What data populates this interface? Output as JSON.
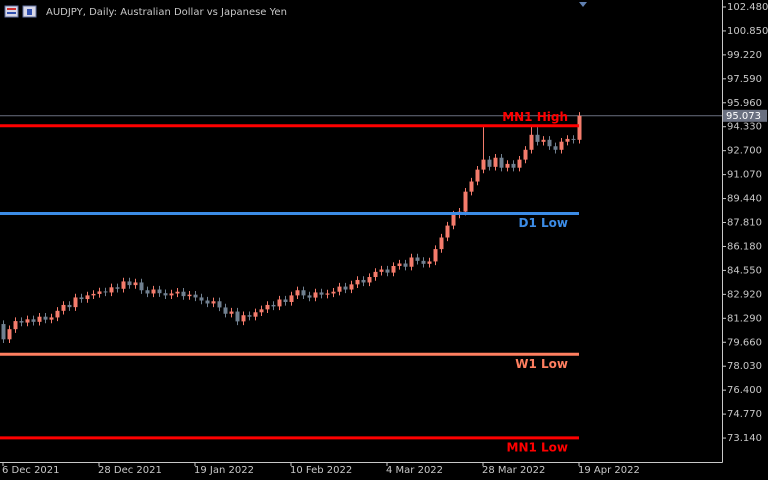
{
  "chart_data": {
    "type": "candlestick",
    "title": "AUDJPY, Daily:  Australian Dollar vs Japanese Yen",
    "up_color": "#f47c6c",
    "down_color": "#708090",
    "categories": [
      "6 Dec 2021",
      null,
      null,
      null,
      null,
      null,
      null,
      null,
      null,
      null,
      null,
      null,
      null,
      null,
      null,
      null,
      "28 Dec 2021",
      null,
      null,
      null,
      null,
      null,
      null,
      null,
      null,
      null,
      null,
      null,
      null,
      null,
      null,
      null,
      "19 Jan 2022",
      null,
      null,
      null,
      null,
      null,
      null,
      null,
      null,
      null,
      null,
      null,
      null,
      null,
      null,
      null,
      "10 Feb 2022",
      null,
      null,
      null,
      null,
      null,
      null,
      null,
      null,
      null,
      null,
      null,
      null,
      null,
      null,
      null,
      "4 Mar 2022",
      null,
      null,
      null,
      null,
      null,
      null,
      null,
      null,
      null,
      null,
      null,
      null,
      null,
      null,
      null,
      "28 Mar 2022",
      null,
      null,
      null,
      null,
      null,
      null,
      null,
      null,
      null,
      null,
      null,
      null,
      null,
      null,
      null,
      "19 Apr 2022"
    ],
    "open": [
      80.9,
      79.86,
      80.55,
      81.1,
      81.0,
      81.22,
      81.05,
      81.4,
      81.2,
      81.35,
      81.8,
      82.2,
      82.05,
      82.71,
      82.6,
      82.85,
      82.95,
      83.12,
      83.05,
      83.4,
      83.3,
      83.8,
      83.55,
      83.73,
      83.2,
      82.98,
      83.25,
      83.0,
      82.85,
      82.98,
      83.1,
      82.8,
      82.9,
      82.71,
      82.5,
      82.3,
      82.45,
      82.03,
      81.6,
      81.75,
      81.08,
      81.5,
      81.4,
      81.7,
      81.9,
      82.2,
      82.1,
      82.57,
      82.4,
      82.85,
      83.2,
      82.85,
      82.7,
      83.05,
      82.9,
      82.98,
      83.1,
      83.45,
      83.25,
      83.6,
      83.9,
      83.73,
      84.1,
      84.45,
      84.61,
      84.4,
      84.85,
      85.02,
      84.8,
      85.43,
      85.2,
      85.0,
      85.16,
      86.0,
      86.79,
      87.6,
      88.35,
      88.55,
      89.91,
      90.6,
      91.41,
      92.09,
      91.6,
      92.22,
      91.54,
      91.8,
      91.54,
      92.09,
      92.76,
      93.78,
      93.3,
      93.44,
      93.0,
      92.76,
      93.31,
      93.5,
      93.44
    ],
    "high": [
      81.15,
      80.8,
      81.35,
      81.35,
      81.47,
      81.47,
      81.65,
      81.65,
      81.6,
      82.05,
      82.45,
      82.45,
      82.96,
      82.96,
      83.1,
      83.2,
      83.37,
      83.37,
      83.65,
      83.65,
      84.05,
      84.05,
      83.98,
      83.98,
      83.45,
      83.5,
      83.5,
      83.25,
      83.23,
      83.35,
      83.35,
      83.15,
      83.15,
      82.96,
      82.75,
      82.7,
      82.7,
      82.28,
      82.0,
      82.0,
      81.75,
      81.75,
      81.95,
      82.15,
      82.45,
      82.45,
      82.82,
      82.82,
      83.1,
      83.45,
      83.45,
      83.1,
      83.3,
      83.3,
      83.23,
      83.35,
      83.7,
      83.7,
      83.85,
      84.15,
      84.15,
      84.35,
      84.7,
      84.86,
      84.86,
      85.1,
      85.27,
      85.27,
      85.68,
      85.68,
      85.45,
      85.41,
      86.25,
      87.04,
      87.85,
      88.6,
      88.8,
      90.16,
      90.85,
      91.66,
      94.3,
      92.34,
      92.47,
      92.47,
      92.05,
      92.05,
      92.34,
      93.01,
      94.4,
      94.3,
      93.69,
      93.69,
      93.25,
      93.56,
      93.75,
      93.75,
      95.32
    ],
    "low": [
      79.61,
      79.61,
      80.3,
      80.75,
      80.75,
      80.8,
      80.8,
      80.95,
      80.95,
      81.1,
      81.55,
      81.8,
      81.8,
      82.35,
      82.35,
      82.6,
      82.7,
      82.8,
      82.8,
      83.05,
      83.05,
      83.3,
      83.3,
      82.95,
      82.73,
      82.73,
      82.75,
      82.6,
      82.6,
      82.73,
      82.55,
      82.55,
      82.46,
      82.25,
      82.05,
      82.05,
      81.78,
      81.35,
      81.35,
      80.83,
      80.83,
      81.15,
      81.15,
      81.45,
      81.65,
      81.85,
      81.85,
      82.15,
      82.15,
      82.6,
      82.6,
      82.45,
      82.45,
      82.65,
      82.65,
      82.73,
      82.85,
      83.0,
      83.0,
      83.35,
      83.48,
      83.48,
      83.85,
      84.2,
      84.15,
      84.15,
      84.6,
      84.55,
      84.55,
      84.95,
      84.75,
      84.75,
      84.91,
      85.75,
      86.54,
      87.35,
      88.1,
      88.3,
      89.66,
      90.35,
      91.16,
      91.35,
      91.35,
      91.29,
      91.29,
      91.29,
      91.29,
      91.84,
      92.51,
      93.05,
      93.05,
      92.75,
      92.51,
      92.51,
      93.06,
      93.19,
      93.19
    ],
    "close": [
      79.86,
      80.55,
      81.1,
      81.0,
      81.22,
      81.05,
      81.4,
      81.2,
      81.35,
      81.8,
      82.2,
      82.05,
      82.71,
      82.6,
      82.85,
      82.95,
      83.12,
      83.05,
      83.4,
      83.3,
      83.8,
      83.55,
      83.73,
      83.2,
      82.98,
      83.25,
      83.0,
      82.85,
      82.98,
      83.1,
      82.8,
      82.9,
      82.71,
      82.5,
      82.3,
      82.45,
      82.03,
      81.6,
      81.75,
      81.08,
      81.5,
      81.4,
      81.7,
      81.9,
      82.2,
      82.1,
      82.57,
      82.4,
      82.85,
      83.2,
      82.85,
      82.7,
      83.05,
      82.9,
      82.98,
      83.1,
      83.45,
      83.25,
      83.6,
      83.9,
      83.73,
      84.1,
      84.45,
      84.61,
      84.4,
      84.85,
      85.02,
      84.8,
      85.43,
      85.2,
      85.0,
      85.16,
      86.0,
      86.79,
      87.6,
      88.35,
      88.55,
      89.91,
      90.6,
      91.41,
      92.09,
      91.6,
      92.22,
      91.54,
      91.8,
      91.54,
      92.09,
      92.76,
      93.78,
      93.3,
      93.44,
      93.0,
      92.76,
      93.31,
      93.5,
      93.44,
      95.07
    ],
    "levels": [
      {
        "name": "MN1 High",
        "value": 94.4,
        "color": "#ff0000"
      },
      {
        "name": "D1 Low",
        "value": 88.42,
        "color": "#3c8ce6"
      },
      {
        "name": "W1 Low",
        "value": 78.84,
        "color": "#ff7f60"
      },
      {
        "name": "MN1 Low",
        "value": 73.15,
        "color": "#ff0000"
      }
    ],
    "last_price": {
      "value": 95.073,
      "label": "95.073"
    },
    "ylim": [
      71.51,
      102.955
    ],
    "yticks": [
      {
        "value": 73.14,
        "label": "73.140"
      },
      {
        "value": 74.77,
        "label": "74.770"
      },
      {
        "value": 76.4,
        "label": "76.400"
      },
      {
        "value": 78.03,
        "label": "78.030"
      },
      {
        "value": 79.66,
        "label": "79.660"
      },
      {
        "value": 81.29,
        "label": "81.290"
      },
      {
        "value": 82.92,
        "label": "82.920"
      },
      {
        "value": 84.55,
        "label": "84.550"
      },
      {
        "value": 86.18,
        "label": "86.180"
      },
      {
        "value": 87.81,
        "label": "87.810"
      },
      {
        "value": 89.44,
        "label": "89.440"
      },
      {
        "value": 91.07,
        "label": "91.070"
      },
      {
        "value": 92.7,
        "label": "92.700"
      },
      {
        "value": 94.33,
        "label": "94.330"
      },
      {
        "value": 95.96,
        "label": "95.960"
      },
      {
        "value": 97.59,
        "label": "97.590"
      },
      {
        "value": 99.22,
        "label": "99.220"
      },
      {
        "value": 100.85,
        "label": "100.850"
      },
      {
        "value": 102.48,
        "label": "102.480"
      }
    ]
  }
}
